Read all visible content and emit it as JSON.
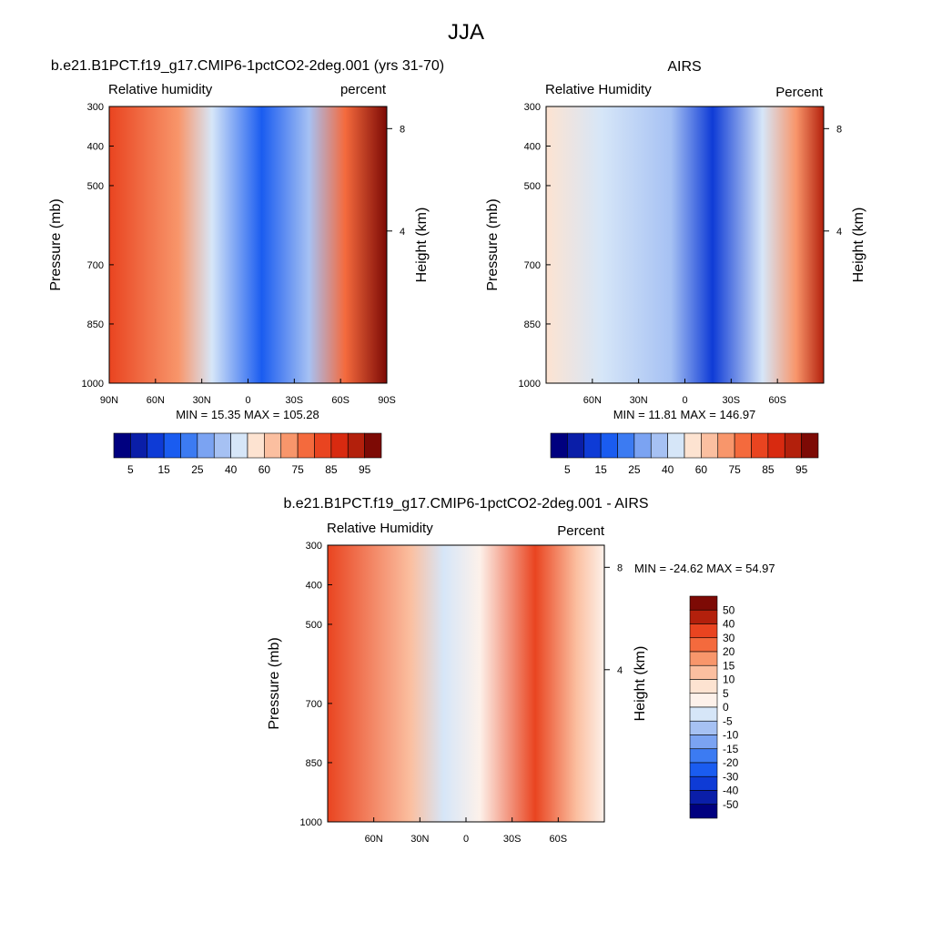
{
  "figure": {
    "title": "JJA"
  },
  "colors": {
    "abs_palette": [
      "#00007f",
      "#0a1ea8",
      "#0e3bd6",
      "#1a5cf0",
      "#3c7bf2",
      "#7ba3f2",
      "#a6c1f3",
      "#d6e6f8",
      "#fde3d1",
      "#fbbfa0",
      "#f8966b",
      "#f46a3d",
      "#e94420",
      "#d82a10",
      "#b3200c",
      "#7d0a05"
    ],
    "diff_palette": [
      "#00007f",
      "#0a1ea8",
      "#0e3bd6",
      "#1a5cf0",
      "#3c7bf2",
      "#7ba3f2",
      "#a6c1f3",
      "#d6e6f8",
      "#fdf1ea",
      "#fde3d1",
      "#fbbfa0",
      "#f8966b",
      "#f46a3d",
      "#e94420",
      "#b3200c",
      "#7d0a05"
    ]
  },
  "chart_data": [
    {
      "type": "heatmap",
      "title": "b.e21.B1PCT.f19_g17.CMIP6-1pctCO2-2deg.001 (yrs 31-70)",
      "left_label": "Relative humidity",
      "right_label": "percent",
      "ylabel": "Pressure (mb)",
      "ylabel_right": "Height (km)",
      "xticks": [
        "90N",
        "60N",
        "30N",
        "0",
        "30S",
        "60S",
        "90S"
      ],
      "yticks": [
        "300",
        "400",
        "500",
        "700",
        "850",
        "1000"
      ],
      "height_ticks": [
        "8",
        "4"
      ],
      "min_max_text": "MIN =  15.35  MAX = 105.28",
      "colorbar_labels": [
        "5",
        "15",
        "25",
        "40",
        "60",
        "75",
        "85",
        "95"
      ],
      "x_range": [
        "90N",
        "90S"
      ],
      "y_range_mb": [
        1000,
        300
      ],
      "z_range": [
        15.35,
        105.28
      ]
    },
    {
      "type": "heatmap",
      "title": "AIRS",
      "left_label": "Relative Humidity",
      "right_label": "Percent",
      "ylabel": "Pressure (mb)",
      "ylabel_right": "Height (km)",
      "xticks": [
        "60N",
        "30N",
        "0",
        "30S",
        "60S"
      ],
      "yticks": [
        "300",
        "400",
        "500",
        "700",
        "850",
        "1000"
      ],
      "height_ticks": [
        "8",
        "4"
      ],
      "min_max_text": "MIN =  11.81  MAX = 146.97",
      "colorbar_labels": [
        "5",
        "15",
        "25",
        "40",
        "60",
        "75",
        "85",
        "95"
      ],
      "y_range_mb": [
        1000,
        300
      ],
      "z_range": [
        11.81,
        146.97
      ]
    },
    {
      "type": "heatmap",
      "title": "b.e21.B1PCT.f19_g17.CMIP6-1pctCO2-2deg.001 - AIRS",
      "left_label": "Relative Humidity",
      "right_label": "Percent",
      "ylabel": "Pressure (mb)",
      "ylabel_right": "Height (km)",
      "xticks": [
        "60N",
        "30N",
        "0",
        "30S",
        "60S"
      ],
      "yticks": [
        "300",
        "400",
        "500",
        "700",
        "850",
        "1000"
      ],
      "height_ticks": [
        "8",
        "4"
      ],
      "min_max_text": "MIN = -24.62  MAX =  54.97",
      "colorbar_labels": [
        "50",
        "40",
        "30",
        "20",
        "15",
        "10",
        "5",
        "0",
        "-5",
        "-10",
        "-15",
        "-20",
        "-30",
        "-40",
        "-50"
      ],
      "y_range_mb": [
        1000,
        300
      ],
      "z_range": [
        -24.62,
        54.97
      ]
    }
  ]
}
